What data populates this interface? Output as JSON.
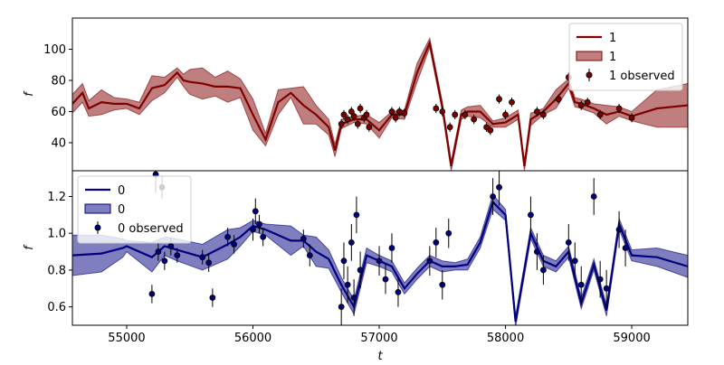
{
  "chart_data": [
    {
      "type": "line",
      "ylabel": "f",
      "xlim": [
        54570,
        59444
      ],
      "ylim": [
        22,
        120
      ],
      "yticks": [
        40,
        60,
        80,
        100
      ],
      "legend": "upper right",
      "series": [
        {
          "kind": "line",
          "name": "1",
          "color": "#800000",
          "x": [
            54570,
            54650,
            54700,
            54800,
            54900,
            55000,
            55100,
            55200,
            55300,
            55400,
            55450,
            55500,
            55600,
            55700,
            55800,
            55900,
            56000,
            56100,
            56200,
            56300,
            56400,
            56500,
            56600,
            56650,
            56700,
            56800,
            56900,
            57000,
            57100,
            57200,
            57300,
            57400,
            57500,
            57570,
            57650,
            57700,
            57800,
            57900,
            58000,
            58100,
            58150,
            58200,
            58300,
            58400,
            58500,
            58550,
            58600,
            58700,
            58800,
            58900,
            59000,
            59200,
            59444
          ],
          "values": [
            65,
            72,
            62,
            66,
            65,
            65,
            62,
            75,
            77,
            85,
            80,
            79,
            78,
            76,
            76,
            75,
            58,
            42,
            66,
            72,
            64,
            58,
            50,
            35,
            52,
            55,
            55,
            48,
            58,
            58,
            85,
            104,
            63,
            25,
            58,
            60,
            60,
            52,
            53,
            58,
            25,
            55,
            60,
            68,
            78,
            66,
            65,
            62,
            58,
            60,
            57,
            62,
            64
          ]
        },
        {
          "kind": "band",
          "name": "1",
          "color": "#800000",
          "errors": [
            6,
            6,
            5,
            8,
            4,
            3,
            4,
            8,
            5,
            3,
            4,
            8,
            10,
            6,
            10,
            6,
            10,
            4,
            8,
            3,
            12,
            6,
            5,
            4,
            3,
            2,
            3,
            5,
            2,
            3,
            6,
            3,
            3,
            3,
            3,
            3,
            4,
            2,
            3,
            3,
            3,
            4,
            2,
            6,
            3,
            3,
            3,
            3,
            6,
            3,
            3,
            12,
            14
          ]
        },
        {
          "kind": "observed",
          "name": "1 observed",
          "color": "#800000",
          "x": [
            56700,
            56720,
            56750,
            56780,
            56800,
            56830,
            56850,
            56880,
            56900,
            56920,
            57100,
            57130,
            57160,
            57200,
            57450,
            57500,
            57560,
            57600,
            57680,
            57750,
            57850,
            57880,
            57950,
            58000,
            58050,
            58250,
            58300,
            58420,
            58500,
            58600,
            58650,
            58750,
            58900,
            59000
          ],
          "values": [
            52,
            58,
            55,
            60,
            57,
            52,
            62,
            56,
            58,
            50,
            60,
            56,
            60,
            59,
            62,
            60,
            50,
            58,
            58,
            55,
            50,
            48,
            68,
            58,
            66,
            60,
            58,
            68,
            82,
            64,
            66,
            58,
            62,
            56
          ],
          "errors": [
            3,
            3,
            3,
            3,
            3,
            3,
            3,
            3,
            3,
            3,
            3,
            3,
            3,
            3,
            3,
            3,
            3,
            3,
            3,
            3,
            3,
            3,
            3,
            3,
            3,
            3,
            3,
            3,
            3,
            3,
            3,
            3,
            3,
            3
          ]
        }
      ]
    },
    {
      "type": "line",
      "ylabel": "f",
      "xlabel": "t",
      "xlim": [
        54570,
        59444
      ],
      "ylim": [
        0.5,
        1.34
      ],
      "xticks": [
        55000,
        56000,
        57000,
        58000,
        59000
      ],
      "yticks": [
        0.6,
        0.8,
        {
          "value": 1,
          "label": "1.0"
        },
        1.2
      ],
      "legend": "upper left",
      "series": [
        {
          "kind": "line",
          "name": "0",
          "color": "#000080",
          "x": [
            54570,
            54800,
            54970,
            55000,
            55200,
            55300,
            55400,
            55600,
            55800,
            55900,
            56000,
            56100,
            56300,
            56400,
            56500,
            56600,
            56700,
            56800,
            56900,
            57000,
            57100,
            57200,
            57300,
            57400,
            57500,
            57600,
            57700,
            57800,
            57900,
            58000,
            58080,
            58200,
            58300,
            58400,
            58500,
            58600,
            58700,
            58800,
            58900,
            59000,
            59200,
            59444
          ],
          "values": [
            0.88,
            0.89,
            0.92,
            0.93,
            0.87,
            0.93,
            0.91,
            0.87,
            0.94,
            0.98,
            1.04,
            1.02,
            0.96,
            0.96,
            0.9,
            0.86,
            0.72,
            0.6,
            0.88,
            0.85,
            0.82,
            0.7,
            0.78,
            0.85,
            0.82,
            0.82,
            0.83,
            0.95,
            1.17,
            1.1,
            0.52,
            1.0,
            0.85,
            0.82,
            0.9,
            0.62,
            0.83,
            0.58,
            1.05,
            0.88,
            0.87,
            0.82
          ]
        },
        {
          "kind": "band",
          "name": "0",
          "color": "#000080",
          "errors": [
            0.11,
            0.1,
            0.05,
            0.03,
            0.08,
            0.05,
            0.06,
            0.07,
            0.08,
            0.05,
            0.03,
            0.03,
            0.08,
            0.03,
            0.08,
            0.05,
            0.04,
            0.04,
            0.04,
            0.03,
            0.03,
            0.03,
            0.03,
            0.03,
            0.03,
            0.02,
            0.03,
            0.03,
            0.04,
            0.03,
            0.03,
            0.03,
            0.03,
            0.03,
            0.03,
            0.03,
            0.03,
            0.03,
            0.03,
            0.03,
            0.05,
            0.06
          ]
        },
        {
          "kind": "observed",
          "name": "0 observed",
          "color": "#000080",
          "x": [
            55200,
            55230,
            55250,
            55280,
            55300,
            55350,
            55400,
            55600,
            55650,
            55680,
            55800,
            55850,
            56000,
            56020,
            56050,
            56080,
            56400,
            56450,
            56700,
            56720,
            56750,
            56780,
            56800,
            56820,
            56850,
            57000,
            57050,
            57100,
            57150,
            57400,
            57450,
            57500,
            57550,
            57900,
            57950,
            58200,
            58250,
            58300,
            58500,
            58550,
            58600,
            58700,
            58750,
            58800,
            58900,
            58950
          ],
          "values": [
            0.67,
            1.32,
            0.9,
            1.25,
            0.85,
            0.93,
            0.88,
            0.87,
            0.84,
            0.65,
            0.98,
            0.94,
            1.02,
            1.12,
            1.05,
            0.98,
            0.97,
            0.88,
            0.6,
            0.85,
            0.72,
            0.95,
            0.65,
            1.1,
            0.8,
            0.85,
            0.75,
            0.92,
            0.68,
            0.85,
            0.95,
            0.72,
            1.0,
            1.2,
            1.25,
            1.1,
            0.9,
            0.8,
            0.95,
            0.85,
            0.72,
            1.2,
            0.75,
            0.7,
            1.02,
            0.92
          ],
          "errors": [
            0.05,
            0.1,
            0.05,
            0.06,
            0.05,
            0.05,
            0.04,
            0.04,
            0.05,
            0.05,
            0.05,
            0.05,
            0.06,
            0.07,
            0.05,
            0.05,
            0.05,
            0.06,
            0.1,
            0.1,
            0.1,
            0.1,
            0.1,
            0.1,
            0.1,
            0.08,
            0.08,
            0.08,
            0.08,
            0.08,
            0.08,
            0.08,
            0.08,
            0.1,
            0.1,
            0.1,
            0.1,
            0.08,
            0.1,
            0.1,
            0.1,
            0.1,
            0.1,
            0.1,
            0.1,
            0.1
          ]
        }
      ]
    }
  ]
}
